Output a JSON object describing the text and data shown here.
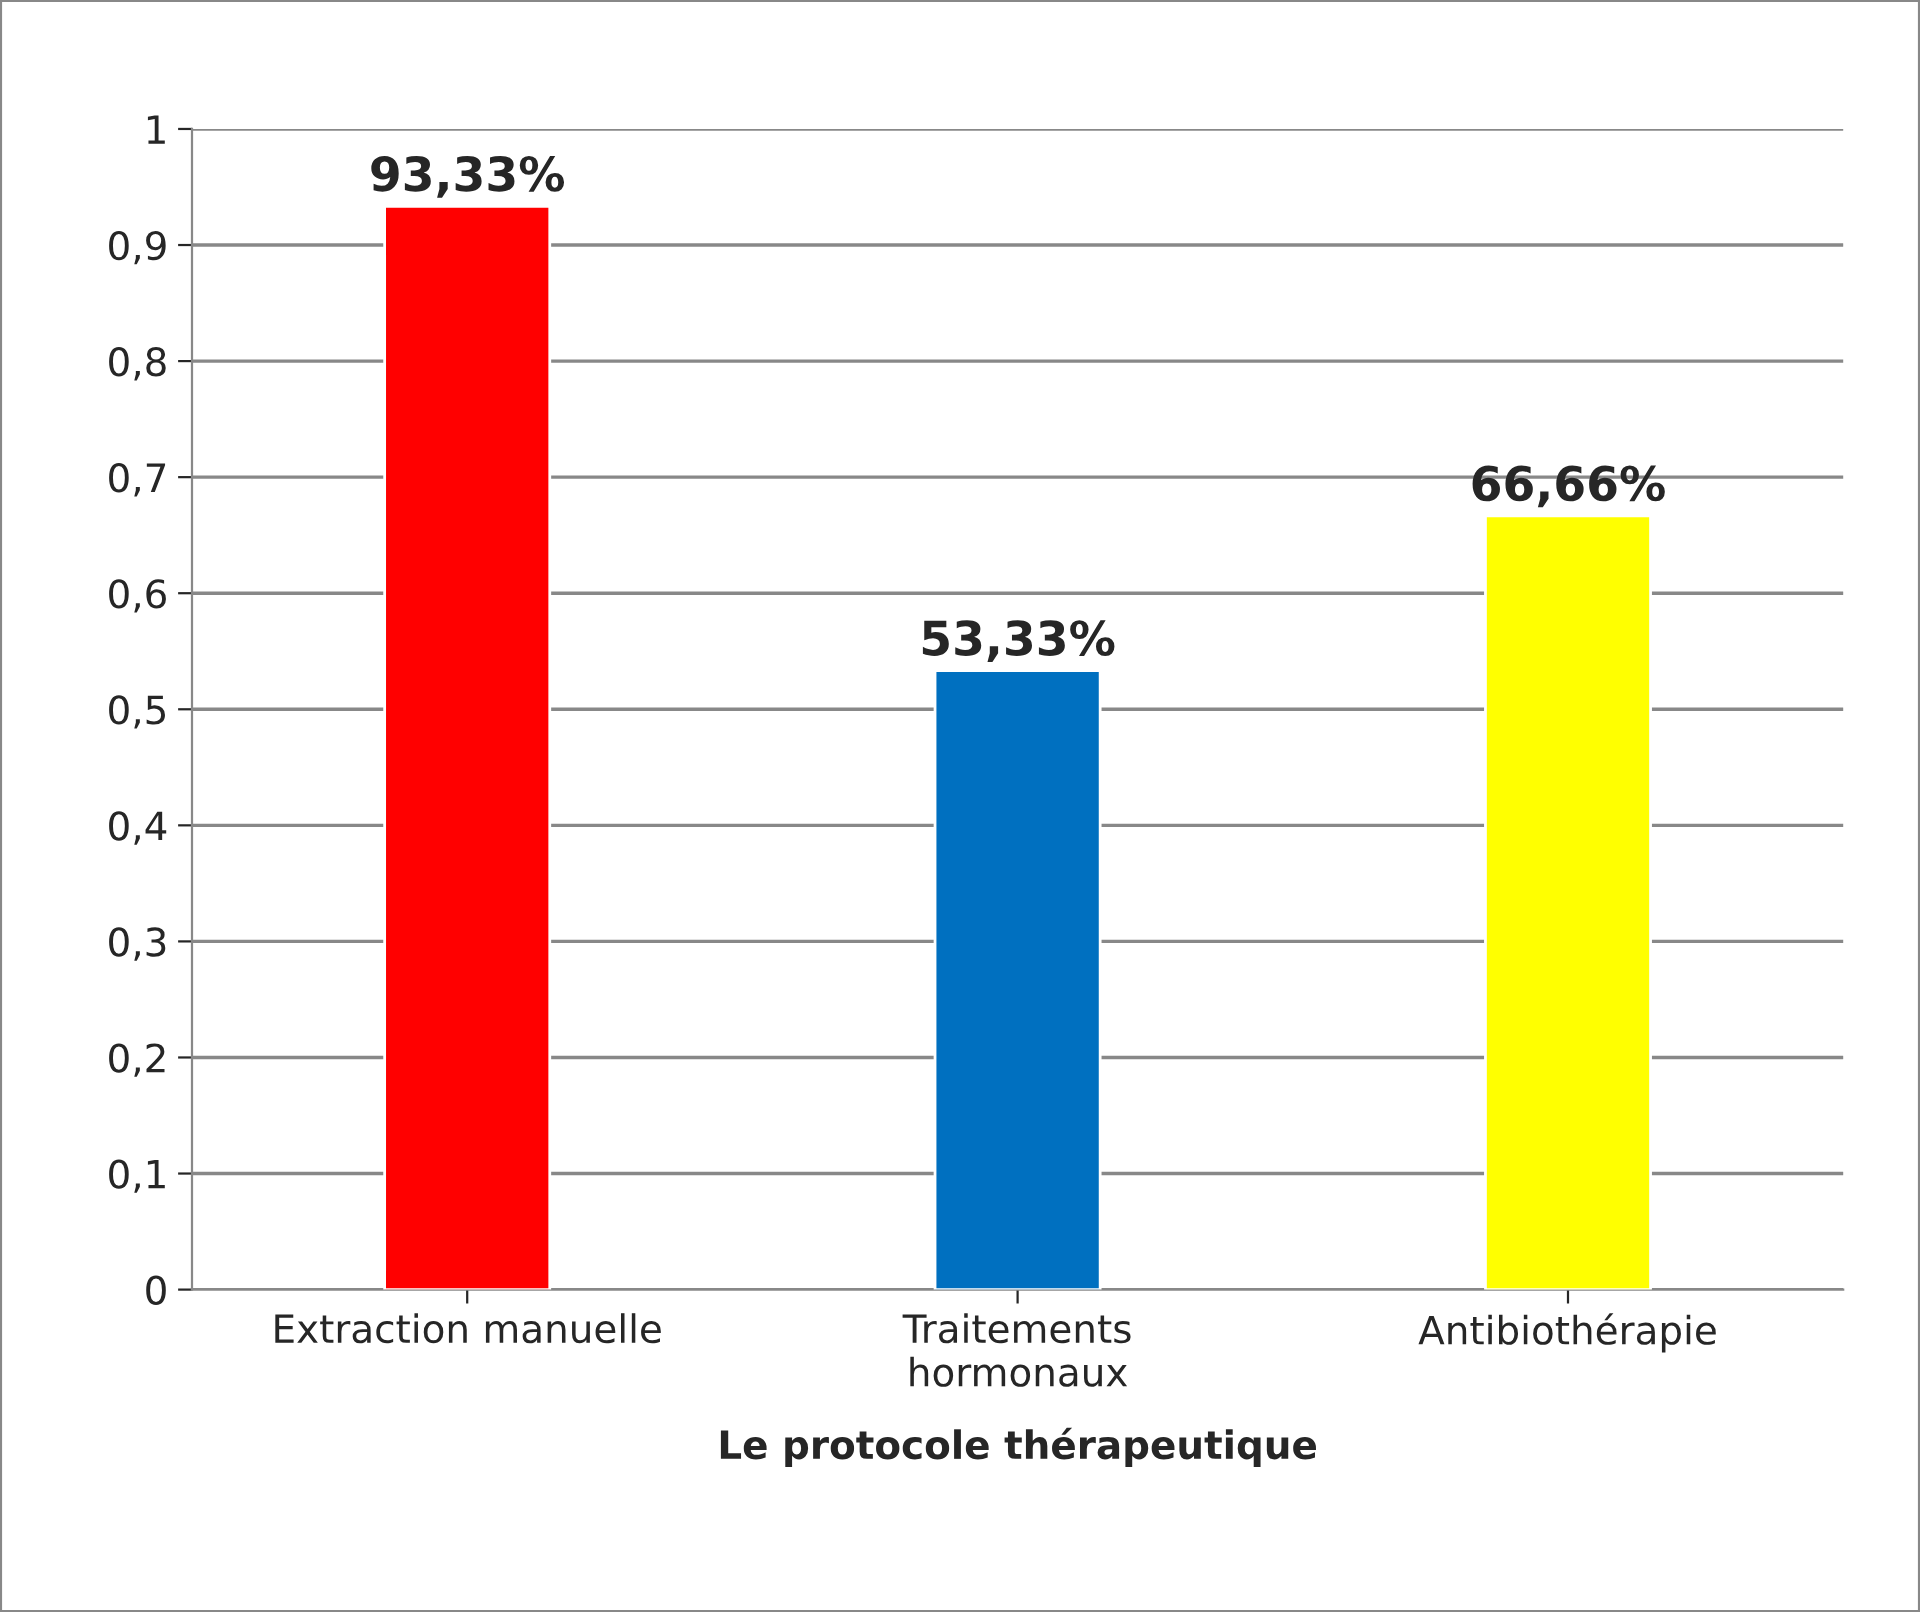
{
  "chart_data": {
    "type": "bar",
    "xlabel": "Le protocole thérapeutique",
    "categories": [
      "Extraction manuelle",
      "Traitements\nhormonaux",
      "Antibiothérapie"
    ],
    "values": [
      0.9333,
      0.5333,
      0.6666
    ],
    "value_labels": [
      "93,33%",
      "53,33%",
      "66,66%"
    ],
    "colors": [
      "#ff0000",
      "#0070c0",
      "#ffff00"
    ],
    "ylim": [
      0,
      1
    ],
    "yticks": [
      0,
      {
        "value": 0.1,
        "label": "0,1"
      },
      {
        "value": 0.2,
        "label": "0,2"
      },
      {
        "value": 0.3,
        "label": "0,3"
      },
      {
        "value": 0.4,
        "label": "0,4"
      },
      {
        "value": 0.5,
        "label": "0,5"
      },
      {
        "value": 0.6,
        "label": "0,6"
      },
      {
        "value": 0.7,
        "label": "0,7"
      },
      {
        "value": 0.8,
        "label": "0,8"
      },
      {
        "value": 0.9,
        "label": "0,9"
      },
      1
    ],
    "grid": "y"
  }
}
